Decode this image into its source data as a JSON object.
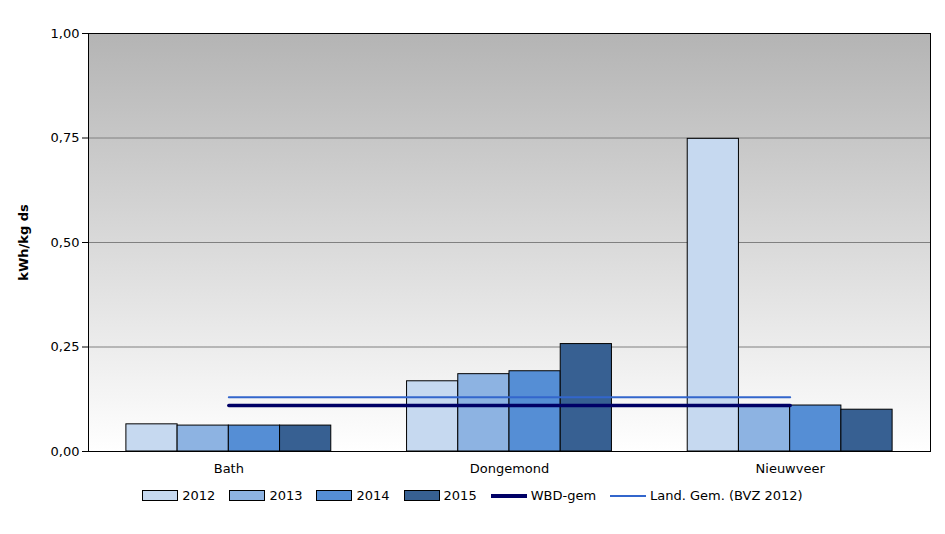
{
  "chart_data": {
    "type": "bar",
    "categories": [
      "Bath",
      "Dongemond",
      "Nieuwveer"
    ],
    "series": [
      {
        "name": "2012",
        "color": "#c6d9f0",
        "values": [
          0.065,
          0.168,
          0.748
        ]
      },
      {
        "name": "2013",
        "color": "#8db3e2",
        "values": [
          0.062,
          0.185,
          0.11
        ]
      },
      {
        "name": "2014",
        "color": "#558ed5",
        "values": [
          0.062,
          0.192,
          0.11
        ]
      },
      {
        "name": "2015",
        "color": "#376092",
        "values": [
          0.062,
          0.257,
          0.1
        ]
      },
      {
        "name": "WBD-gem",
        "type": "line",
        "color": "#000066",
        "values": [
          0.11,
          0.11,
          0.11
        ]
      },
      {
        "name": "Land. Gem. (BVZ 2012)",
        "type": "line",
        "color": "#3366cc",
        "values": [
          0.13,
          0.13,
          0.13
        ]
      }
    ],
    "ylabel": "kWh/kg ds",
    "ylim": [
      0,
      1
    ],
    "yticks": [
      {
        "value": 0,
        "label": "0,00"
      },
      {
        "value": 0.25,
        "label": "0,25"
      },
      {
        "value": 0.5,
        "label": "0,50"
      },
      {
        "value": 0.75,
        "label": "0,75"
      },
      {
        "value": 1,
        "label": "1,00"
      }
    ],
    "grid": true,
    "legend": "bottom"
  }
}
